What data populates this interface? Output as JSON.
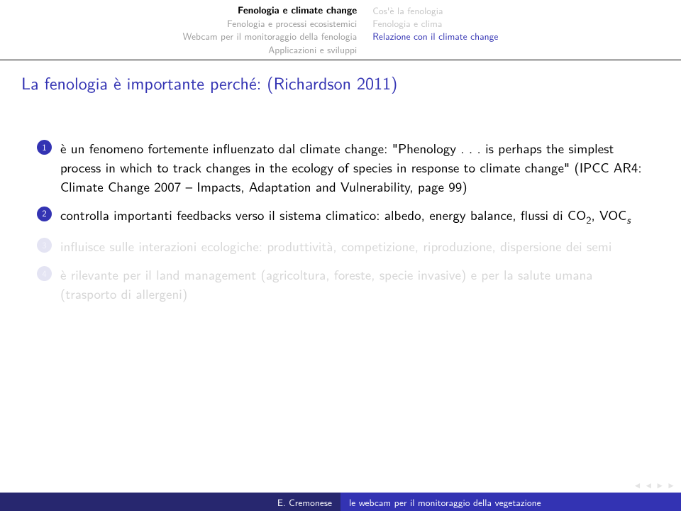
{
  "header": {
    "left": [
      "Fenologia e climate change",
      "Fenologia e processi ecosistemici",
      "Webcam per il monitoraggio della fenologia",
      "Applicazioni e sviluppi"
    ],
    "left_active_index": 0,
    "right": [
      "Cos'è la fenologia",
      "Fenologia e clima",
      "Relazione con il climate change"
    ],
    "right_current_index": 2
  },
  "frametitle": "La fenologia è importante perché: (Richardson 2011)",
  "items": [
    {
      "num": "1",
      "visible": true,
      "text": "è un fenomeno fortemente influenzato dal climate change: \"Phenology . . . is perhaps the simplest process in which to track changes in the ecology of species in response to climate change\" (IPCC AR4: Climate Change 2007 – Impacts, Adaptation and Vulnerability, page 99)"
    },
    {
      "num": "2",
      "visible": true,
      "html": "controlla importanti feedbacks verso il sistema climatico: albedo, energy balance, flussi di CO<span class=\"sub\">2</span>, VOC<span class=\"subi\">s</span>"
    },
    {
      "num": "3",
      "visible": false,
      "text": "influisce sulle interazioni ecologiche: produttività, competizione, riproduzione, dispersione dei semi"
    },
    {
      "num": "4",
      "visible": false,
      "text": "è rilevante per il land management (agricoltura, foreste, specie invasive) e per la salute umana (trasporto di allergeni)"
    }
  ],
  "footer": {
    "author": "E. Cremonese",
    "title": "le webcam per il monitoraggio della vegetazione"
  },
  "colors": {
    "structure": "#3333b3",
    "footer_dark": "#27276f",
    "dim_text": "#d6d6d6",
    "inactive_nav": "#9a9a9a",
    "right_inactive": "#c5c5c5"
  }
}
